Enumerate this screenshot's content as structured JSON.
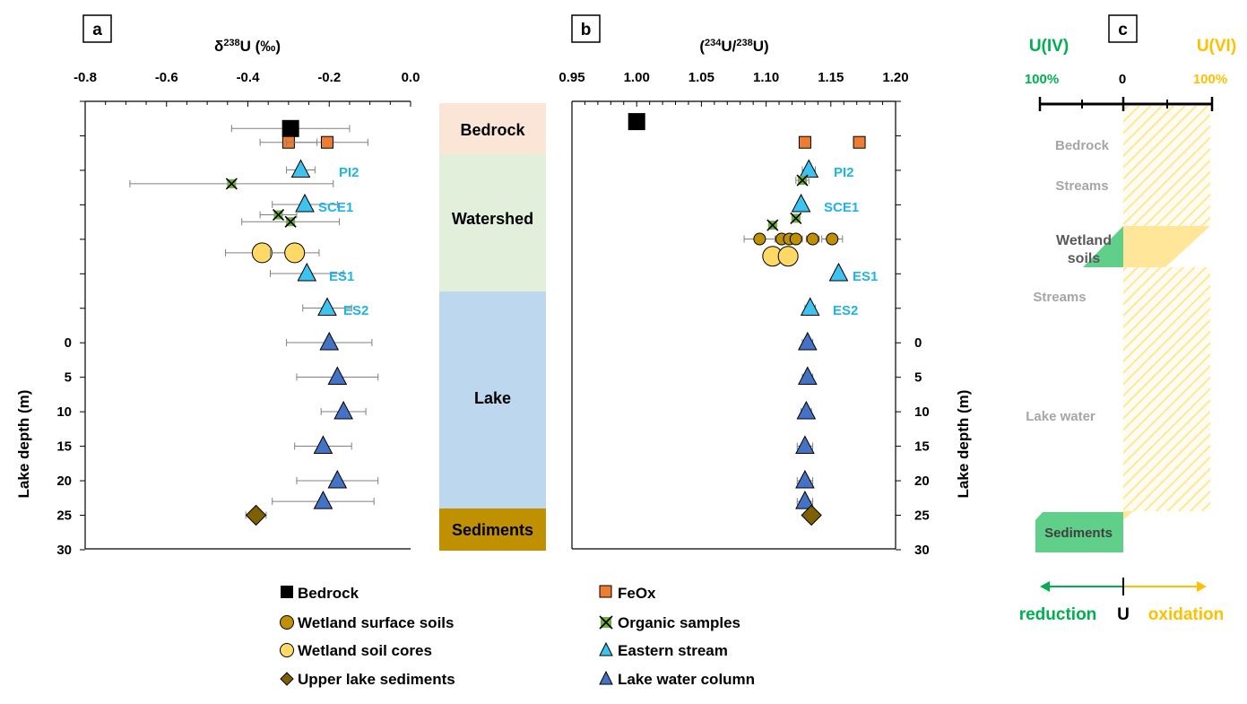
{
  "colors": {
    "bedrock": "#000000",
    "feox": "#ED7D31",
    "wetland_surface": "#BF9000",
    "organic": "#70AD47",
    "wetland_core": "#FFD966",
    "eastern_stream": "#3DC3F0",
    "upper_sediment": "#7F6000",
    "lake_water": "#4472C4",
    "site_label": "#1EB4EB",
    "u_iv": "#00B050",
    "u_vi": "#FFC000",
    "zone_bedrock": "#FBE5D6",
    "zone_watershed": "#E2EFDA",
    "zone_lake": "#BDD7EE",
    "zone_sediments": "#BF9000"
  },
  "panels": {
    "a": {
      "label": "a",
      "title_pre": "δ",
      "title_sup": "238",
      "title_post": "U (‰)"
    },
    "b": {
      "label": "b",
      "title_pre": "(",
      "title_sup1": "234",
      "title_mid": "U/",
      "title_sup2": "238",
      "title_post": "U)"
    },
    "c": {
      "label": "c"
    }
  },
  "axes": {
    "depth_label": "Lake depth (m)",
    "depth_ticks": [
      "0",
      "5",
      "10",
      "15",
      "20",
      "25",
      "30"
    ],
    "delta_ticks": [
      "-0.8",
      "-0.6",
      "-0.4",
      "-0.2",
      "0.0"
    ],
    "ratio_ticks": [
      "0.95",
      "1.00",
      "1.05",
      "1.10",
      "1.15",
      "1.20"
    ]
  },
  "zones": {
    "bedrock": "Bedrock",
    "watershed": "Watershed",
    "lake": "Lake",
    "sediments": "Sediments"
  },
  "site_labels": {
    "pi2": "PI2",
    "sce1": "SCE1",
    "es1": "ES1",
    "es2": "ES2"
  },
  "legend": {
    "bedrock": "Bedrock",
    "wetland_surface": "Wetland surface soils",
    "wetland_core": "Wetland soil cores",
    "upper_sediment": "Upper lake sediments",
    "feox": "FeOx",
    "organic": "Organic samples",
    "eastern_stream": "Eastern stream",
    "lake_water": "Lake water column"
  },
  "panel_c": {
    "u_iv": "U(IV)",
    "u_vi": "U(VI)",
    "pct_left": "100%",
    "zero": "0",
    "pct_right": "100%",
    "rows": {
      "bedrock": "Bedrock",
      "streams1": "Streams",
      "wetland1": "Wetland",
      "wetland2": "soils",
      "streams2": "Streams",
      "lake_water": "Lake water",
      "sediments": "Sediments"
    },
    "reduction": "reduction",
    "u": "U",
    "oxidation": "oxidation",
    "fractions": {
      "bedrock": {
        "u_iv": 0,
        "u_vi": 1
      },
      "streams": {
        "u_iv": 0,
        "u_vi": 1
      },
      "wetland_soils": {
        "u_iv": 0.5,
        "u_vi": 0.5
      },
      "lake_water": {
        "u_iv": 0,
        "u_vi": 1
      },
      "sediments": {
        "u_iv": 1,
        "u_vi": 0
      }
    }
  },
  "chart_data": [
    {
      "type": "scatter",
      "panel": "a",
      "xlabel": "δ238U (‰)",
      "ylabel": "Lake depth (m)",
      "xlim": [
        -0.8,
        0.0
      ],
      "ylim": [
        30,
        -35
      ],
      "note_y": "upper rows (y < 0) are watershed samples ordered top to bottom; y ≥ 0 is lake depth in m",
      "series": [
        {
          "name": "Bedrock",
          "marker": "square",
          "points": [
            {
              "y": -31,
              "x": -0.295,
              "err": 0.145
            }
          ]
        },
        {
          "name": "FeOx",
          "marker": "square-small",
          "points": [
            {
              "y": -29,
              "x": -0.3,
              "err": 0.07
            },
            {
              "y": -29,
              "x": -0.205,
              "err": 0.1
            }
          ]
        },
        {
          "name": "Eastern stream",
          "marker": "triangle",
          "points": [
            {
              "y": -25,
              "x": -0.27,
              "err": 0.035,
              "site": "PI2"
            },
            {
              "y": -20,
              "x": -0.26,
              "err": 0.08,
              "site": "SCE1"
            },
            {
              "y": -10,
              "x": -0.255,
              "err": 0.09,
              "site": "ES1"
            },
            {
              "y": -5,
              "x": -0.205,
              "err": 0.06,
              "site": "ES2"
            }
          ]
        },
        {
          "name": "Organic samples",
          "marker": "x",
          "points": [
            {
              "y": -23,
              "x": -0.44,
              "err": 0.25
            },
            {
              "y": -18.5,
              "x": -0.325,
              "err": 0.045
            },
            {
              "y": -17.5,
              "x": -0.295,
              "err": 0.12
            }
          ]
        },
        {
          "name": "Wetland soil cores",
          "marker": "circle-large",
          "points": [
            {
              "y": -13,
              "x": -0.365,
              "err": 0.09
            },
            {
              "y": -13,
              "x": -0.285,
              "err": 0.06
            }
          ]
        },
        {
          "name": "Lake water column",
          "marker": "triangle",
          "points": [
            {
              "y": 0,
              "x": -0.2,
              "err": 0.105
            },
            {
              "y": 5,
              "x": -0.18,
              "err": 0.1
            },
            {
              "y": 10,
              "x": -0.165,
              "err": 0.055
            },
            {
              "y": 15,
              "x": -0.215,
              "err": 0.07
            },
            {
              "y": 20,
              "x": -0.18,
              "err": 0.1
            },
            {
              "y": 23,
              "x": -0.215,
              "err": 0.125
            }
          ]
        },
        {
          "name": "Upper lake sediments",
          "marker": "diamond",
          "points": [
            {
              "y": 25,
              "x": -0.38,
              "err": 0.025
            }
          ]
        }
      ]
    },
    {
      "type": "scatter",
      "panel": "b",
      "xlabel": "(234U/238U)",
      "ylabel": "Lake depth (m)",
      "xlim": [
        0.95,
        1.2
      ],
      "ylim": [
        30,
        -35
      ],
      "series": [
        {
          "name": "Bedrock",
          "marker": "square",
          "points": [
            {
              "y": -32,
              "x": 1.0,
              "err": 0
            }
          ]
        },
        {
          "name": "FeOx",
          "marker": "square-small",
          "points": [
            {
              "y": -29,
              "x": 1.13,
              "err": 0
            },
            {
              "y": -29,
              "x": 1.172,
              "err": 0.004
            }
          ]
        },
        {
          "name": "Eastern stream",
          "marker": "triangle",
          "points": [
            {
              "y": -25,
              "x": 1.133,
              "err": 0.005,
              "site": "PI2"
            },
            {
              "y": -20,
              "x": 1.127,
              "err": 0.003,
              "site": "SCE1"
            },
            {
              "y": -10,
              "x": 1.156,
              "err": 0.003,
              "site": "ES1"
            },
            {
              "y": -5,
              "x": 1.134,
              "err": 0.004,
              "site": "ES2"
            }
          ]
        },
        {
          "name": "Organic samples",
          "marker": "x",
          "points": [
            {
              "y": -23.5,
              "x": 1.128,
              "err": 0.005
            },
            {
              "y": -18,
              "x": 1.123,
              "err": 0.003
            },
            {
              "y": -17,
              "x": 1.105,
              "err": 0.003
            }
          ]
        },
        {
          "name": "Wetland surface soils",
          "marker": "circle",
          "points": [
            {
              "y": -15,
              "x": 1.095,
              "err": 0.012
            },
            {
              "y": -15,
              "x": 1.112,
              "err": 0.005
            },
            {
              "y": -15,
              "x": 1.118,
              "err": 0.005
            },
            {
              "y": -15,
              "x": 1.123,
              "err": 0.005
            },
            {
              "y": -15,
              "x": 1.136,
              "err": 0.005
            },
            {
              "y": -15,
              "x": 1.151,
              "err": 0.008
            }
          ]
        },
        {
          "name": "Wetland soil cores",
          "marker": "circle-large",
          "points": [
            {
              "y": -12.5,
              "x": 1.105,
              "err": 0
            },
            {
              "y": -12.5,
              "x": 1.117,
              "err": 0
            }
          ]
        },
        {
          "name": "Lake water column",
          "marker": "triangle",
          "points": [
            {
              "y": 0,
              "x": 1.132,
              "err": 0.004
            },
            {
              "y": 5,
              "x": 1.132,
              "err": 0.004
            },
            {
              "y": 10,
              "x": 1.131,
              "err": 0.004
            },
            {
              "y": 15,
              "x": 1.13,
              "err": 0.006
            },
            {
              "y": 20,
              "x": 1.13,
              "err": 0.006
            },
            {
              "y": 23,
              "x": 1.13,
              "err": 0.006
            }
          ]
        },
        {
          "name": "Upper lake sediments",
          "marker": "diamond",
          "points": [
            {
              "y": 25,
              "x": 1.135,
              "err": 0
            }
          ]
        }
      ]
    }
  ]
}
